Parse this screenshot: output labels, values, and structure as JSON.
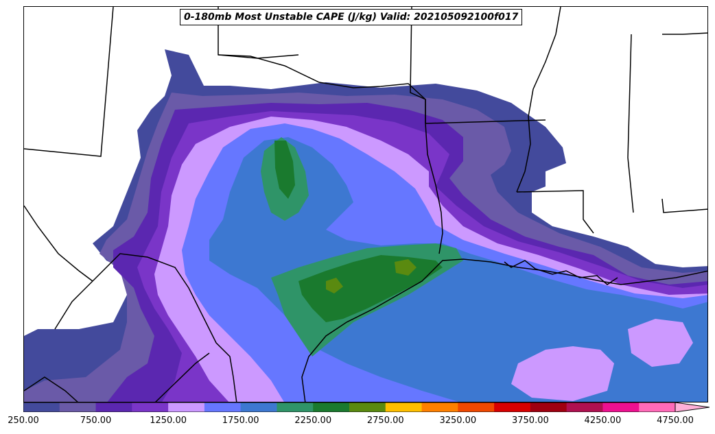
{
  "title": "0-180mb Most Unstable CAPE (J/kg) Valid: 202105092100f017",
  "colorbar": {
    "levels": [
      250,
      500,
      750,
      1000,
      1250,
      1500,
      1750,
      2000,
      2250,
      2500,
      2750,
      3000,
      3250,
      3500,
      3750,
      4000,
      4250,
      4500,
      4750
    ],
    "colors": [
      "#434a9c",
      "#6a5aa8",
      "#5b27b0",
      "#7a35c8",
      "#cc99ff",
      "#6677ff",
      "#3d78d1",
      "#2f9468",
      "#1a7a2e",
      "#5a8a10",
      "#ffbf00",
      "#ff8000",
      "#f04800",
      "#d80000",
      "#a00010",
      "#b01050",
      "#ee1090",
      "#ff6ab8",
      "#ffb0d8"
    ],
    "tick_labels": [
      "250.00",
      "750.00",
      "1250.00",
      "1750.00",
      "2250.00",
      "2750.00",
      "3250.00",
      "3750.00",
      "4250.00",
      "4750.00"
    ],
    "extend": "max"
  },
  "map": {
    "region": "Texas and the Gulf of Mexico coast",
    "field_colors": {
      "c250": "#434a9c",
      "c500": "#6a5aa8",
      "c750": "#5b27b0",
      "c1000": "#7a35c8",
      "c1250": "#cc99ff",
      "c1500": "#6677ff",
      "c1750": "#3d78d1",
      "c2000": "#2f9468",
      "c2250": "#1a7a2e",
      "c2500": "#5a8a10"
    }
  }
}
